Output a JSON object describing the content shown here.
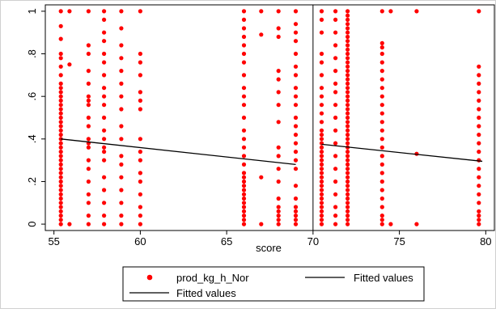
{
  "chart_data": {
    "type": "scatter",
    "xlabel": "score",
    "ylabel": "",
    "xlim": [
      54.5,
      80.5
    ],
    "ylim": [
      -0.03,
      1.03
    ],
    "x_ticks": [
      {
        "value": 55,
        "label": "55"
      },
      {
        "value": 60,
        "label": "60"
      },
      {
        "value": 65,
        "label": "65"
      },
      {
        "value": 70,
        "label": "70"
      },
      {
        "value": 75,
        "label": "75"
      },
      {
        "value": 80,
        "label": "80"
      }
    ],
    "y_ticks": [
      {
        "value": 0,
        "label": "0"
      },
      {
        "value": 0.2,
        "label": ".2"
      },
      {
        "value": 0.4,
        "label": ".4"
      },
      {
        "value": 0.6,
        "label": ".6"
      },
      {
        "value": 0.8,
        "label": ".8"
      },
      {
        "value": 1,
        "label": "1"
      }
    ],
    "grid": false,
    "cutoff_line_x": 70,
    "scatter_series": {
      "name": "prod_kg_h_Nor",
      "color": "#ff0000",
      "columns": [
        {
          "x": 55.4,
          "y": [
            0,
            0.02,
            0.04,
            0.06,
            0.08,
            0.1,
            0.12,
            0.14,
            0.16,
            0.18,
            0.2,
            0.22,
            0.24,
            0.26,
            0.28,
            0.3,
            0.32,
            0.34,
            0.36,
            0.38,
            0.4,
            0.42,
            0.44,
            0.46,
            0.48,
            0.5,
            0.52,
            0.54,
            0.56,
            0.58,
            0.6,
            0.62,
            0.64,
            0.66,
            0.7,
            0.74,
            0.78,
            0.8,
            0.87,
            0.93,
            1
          ]
        },
        {
          "x": 55.9,
          "y": [
            0,
            0.75,
            1
          ]
        },
        {
          "x": 57.0,
          "y": [
            0,
            0.04,
            0.1,
            0.14,
            0.2,
            0.26,
            0.3,
            0.36,
            0.38,
            0.4,
            0.46,
            0.5,
            0.56,
            0.58,
            0.6,
            0.66,
            0.72,
            0.8,
            0.84,
            1
          ]
        },
        {
          "x": 57.9,
          "y": [
            0,
            0.04,
            0.1,
            0.16,
            0.22,
            0.3,
            0.34,
            0.36,
            0.4,
            0.44,
            0.5,
            0.56,
            0.6,
            0.64,
            0.7,
            0.76,
            0.8,
            0.86,
            0.9,
            0.96,
            1
          ]
        },
        {
          "x": 58.9,
          "y": [
            0,
            0.04,
            0.1,
            0.16,
            0.22,
            0.28,
            0.32,
            0.4,
            0.46,
            0.54,
            0.6,
            0.66,
            0.72,
            0.78,
            0.84,
            0.92,
            1
          ]
        },
        {
          "x": 60.0,
          "y": [
            0,
            0.04,
            0.08,
            0.14,
            0.2,
            0.24,
            0.3,
            0.34,
            0.4,
            0.54,
            0.58,
            0.62,
            0.7,
            0.76,
            0.8,
            1
          ]
        },
        {
          "x": 66.0,
          "y": [
            0,
            0.02,
            0.04,
            0.06,
            0.08,
            0.1,
            0.12,
            0.14,
            0.16,
            0.18,
            0.2,
            0.22,
            0.24,
            0.28,
            0.32,
            0.36,
            0.4,
            0.44,
            0.5,
            0.56,
            0.6,
            0.64,
            0.7,
            0.76,
            0.8,
            0.84,
            0.88,
            0.92,
            0.96,
            1
          ]
        },
        {
          "x": 67.0,
          "y": [
            0,
            0.22,
            0.89,
            1
          ]
        },
        {
          "x": 68.0,
          "y": [
            0,
            0.02,
            0.04,
            0.06,
            0.08,
            0.12,
            0.2,
            0.26,
            0.32,
            0.36,
            0.48,
            0.56,
            0.62,
            0.68,
            0.72,
            0.88,
            0.92,
            1
          ]
        },
        {
          "x": 69.0,
          "y": [
            0,
            0.02,
            0.04,
            0.06,
            0.08,
            0.12,
            0.18,
            0.26,
            0.3,
            0.34,
            0.38,
            0.42,
            0.46,
            0.5,
            0.56,
            0.6,
            0.64,
            0.7,
            0.74,
            0.8,
            0.86,
            0.9,
            0.94,
            1
          ]
        },
        {
          "x": 70.5,
          "y": [
            0,
            0.02,
            0.04,
            0.06,
            0.08,
            0.1,
            0.12,
            0.14,
            0.16,
            0.18,
            0.2,
            0.22,
            0.24,
            0.26,
            0.28,
            0.3,
            0.32,
            0.34,
            0.36,
            0.38,
            0.4,
            0.42,
            0.44,
            0.48,
            0.52,
            0.56,
            0.6,
            0.64,
            0.7,
            0.76,
            0.8,
            0.9,
            0.96,
            1
          ]
        },
        {
          "x": 71.3,
          "y": [
            0,
            0.04,
            0.08,
            0.14,
            0.2,
            0.26,
            0.32,
            0.38,
            0.44,
            0.5,
            0.56,
            0.62,
            0.66,
            0.72,
            0.78,
            0.84,
            0.9,
            0.96,
            1
          ]
        },
        {
          "x": 72.0,
          "y": [
            0,
            0.02,
            0.04,
            0.06,
            0.08,
            0.1,
            0.12,
            0.14,
            0.16,
            0.18,
            0.2,
            0.22,
            0.24,
            0.26,
            0.28,
            0.3,
            0.32,
            0.34,
            0.36,
            0.38,
            0.4,
            0.42,
            0.44,
            0.46,
            0.48,
            0.5,
            0.52,
            0.54,
            0.56,
            0.58,
            0.6,
            0.62,
            0.64,
            0.66,
            0.68,
            0.7,
            0.72,
            0.74,
            0.76,
            0.78,
            0.8,
            0.82,
            0.84,
            0.86,
            0.88,
            0.9,
            0.92,
            0.94,
            0.96,
            0.98,
            1
          ]
        },
        {
          "x": 74.0,
          "y": [
            0,
            0.02,
            0.04,
            0.08,
            0.12,
            0.16,
            0.2,
            0.24,
            0.28,
            0.32,
            0.36,
            0.4,
            0.44,
            0.48,
            0.52,
            0.56,
            0.6,
            0.64,
            0.68,
            0.72,
            0.76,
            0.8,
            0.83,
            0.85,
            1
          ]
        },
        {
          "x": 74.5,
          "y": [
            0,
            1
          ]
        },
        {
          "x": 76.0,
          "y": [
            0,
            0.33,
            1
          ]
        },
        {
          "x": 79.6,
          "y": [
            0,
            0.02,
            0.04,
            0.06,
            0.1,
            0.14,
            0.18,
            0.22,
            0.26,
            0.3,
            0.34,
            0.38,
            0.42,
            0.46,
            0.5,
            0.54,
            0.58,
            0.62,
            0.66,
            0.7,
            0.74,
            1
          ]
        }
      ]
    },
    "fitted_lines": [
      {
        "x": [
          55.4,
          69.0
        ],
        "y": [
          0.4,
          0.28
        ],
        "color": "#000000"
      },
      {
        "x": [
          70.5,
          79.8
        ],
        "y": [
          0.375,
          0.295
        ],
        "color": "#000000"
      }
    ],
    "legend": {
      "placement": "bottom",
      "entries": [
        {
          "label": "prod_kg_h_Nor",
          "kind": "marker",
          "color": "#ff0000"
        },
        {
          "label": "Fitted values",
          "kind": "line",
          "color": "#000000"
        },
        {
          "label": "Fitted values",
          "kind": "line",
          "color": "#000000"
        }
      ]
    }
  }
}
